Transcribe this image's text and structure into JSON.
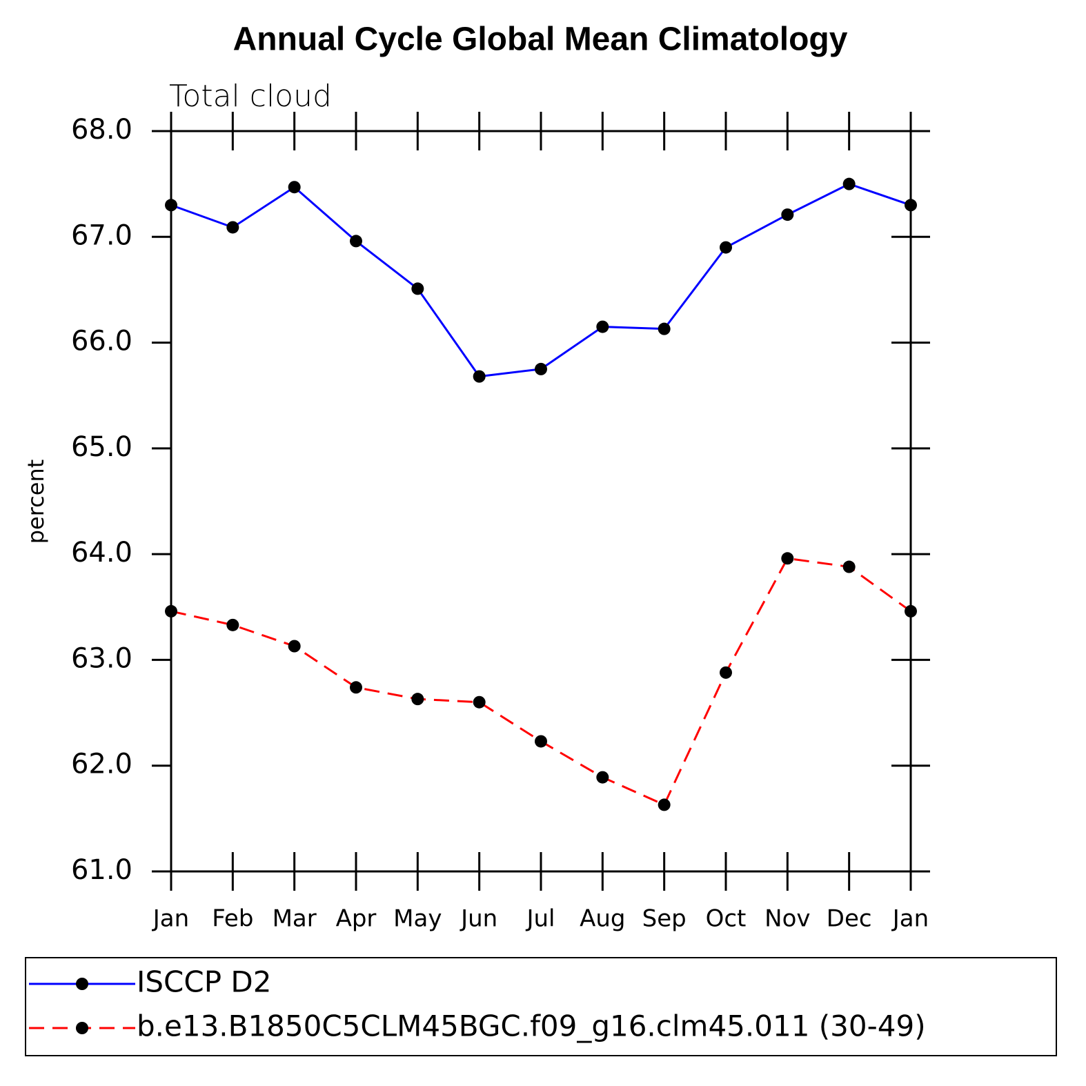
{
  "chart_data": {
    "type": "line",
    "title": "Annual Cycle Global Mean Climatology",
    "subtitle": "Total cloud",
    "y_label": "percent",
    "categories": [
      "Jan",
      "Feb",
      "Mar",
      "Apr",
      "May",
      "Jun",
      "Jul",
      "Aug",
      "Sep",
      "Oct",
      "Nov",
      "Dec",
      "Jan"
    ],
    "series": [
      {
        "name": "ISCCP D2",
        "color": "#0000ff",
        "dash": "solid",
        "values": [
          67.3,
          67.09,
          67.47,
          66.96,
          66.51,
          65.68,
          65.75,
          66.15,
          66.13,
          66.9,
          67.21,
          67.5,
          67.3
        ]
      },
      {
        "name": "b.e13.B1850C5CLM45BGC.f09_g16.clm45.011 (30-49)",
        "color": "#ff0000",
        "dash": "dashed",
        "values": [
          63.46,
          63.33,
          63.13,
          62.74,
          62.63,
          62.6,
          62.23,
          61.89,
          61.63,
          62.88,
          63.96,
          63.88,
          63.46
        ]
      }
    ],
    "ylim": [
      61,
      68
    ],
    "yticks": [
      {
        "value": 61,
        "label": "61.0"
      },
      {
        "value": 62,
        "label": "62.0"
      },
      {
        "value": 63,
        "label": "63.0"
      },
      {
        "value": 64,
        "label": "64.0"
      },
      {
        "value": 65,
        "label": "65.0"
      },
      {
        "value": 66,
        "label": "66.0"
      },
      {
        "value": 67,
        "label": "67.0"
      },
      {
        "value": 68,
        "label": "68.0"
      }
    ],
    "grid": false,
    "legend": "bottom"
  }
}
